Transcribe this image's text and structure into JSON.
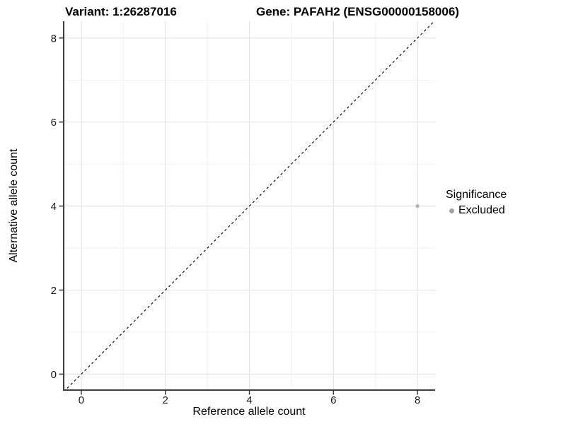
{
  "titles": {
    "left": "Variant: 1:26287016",
    "right": "Gene: PAFAH2 (ENSG00000158006)"
  },
  "chart_data": {
    "type": "scatter",
    "xlabel": "Reference allele count",
    "ylabel": "Alternative allele count",
    "xlim": [
      -0.42,
      8.42
    ],
    "ylim": [
      -0.38,
      8.4
    ],
    "xticks": [
      0,
      2,
      4,
      6,
      8
    ],
    "yticks": [
      0,
      2,
      4,
      6,
      8
    ],
    "minor_gridlines_x": [
      1,
      3,
      5,
      7
    ],
    "minor_gridlines_y": [
      1,
      3,
      5,
      7
    ],
    "grid": true,
    "points": [
      {
        "x": 8,
        "y": 4,
        "series": "Excluded"
      }
    ],
    "reference_line": {
      "type": "identity",
      "style": "dashed",
      "slope": 1,
      "intercept": 0
    },
    "legend": {
      "title": "Significance",
      "position": "right",
      "items": [
        {
          "label": "Excluded",
          "color": "#a0a0a0"
        }
      ]
    },
    "colors": {
      "point": "#b3b3b3",
      "axis_line": "#3d3d3d",
      "tick_mark": "#333333",
      "grid_major": "#e4e4e4",
      "grid_minor": "#f1f1f1",
      "dashed_line": "#000000",
      "tick_text": "#1a1a1a"
    }
  }
}
